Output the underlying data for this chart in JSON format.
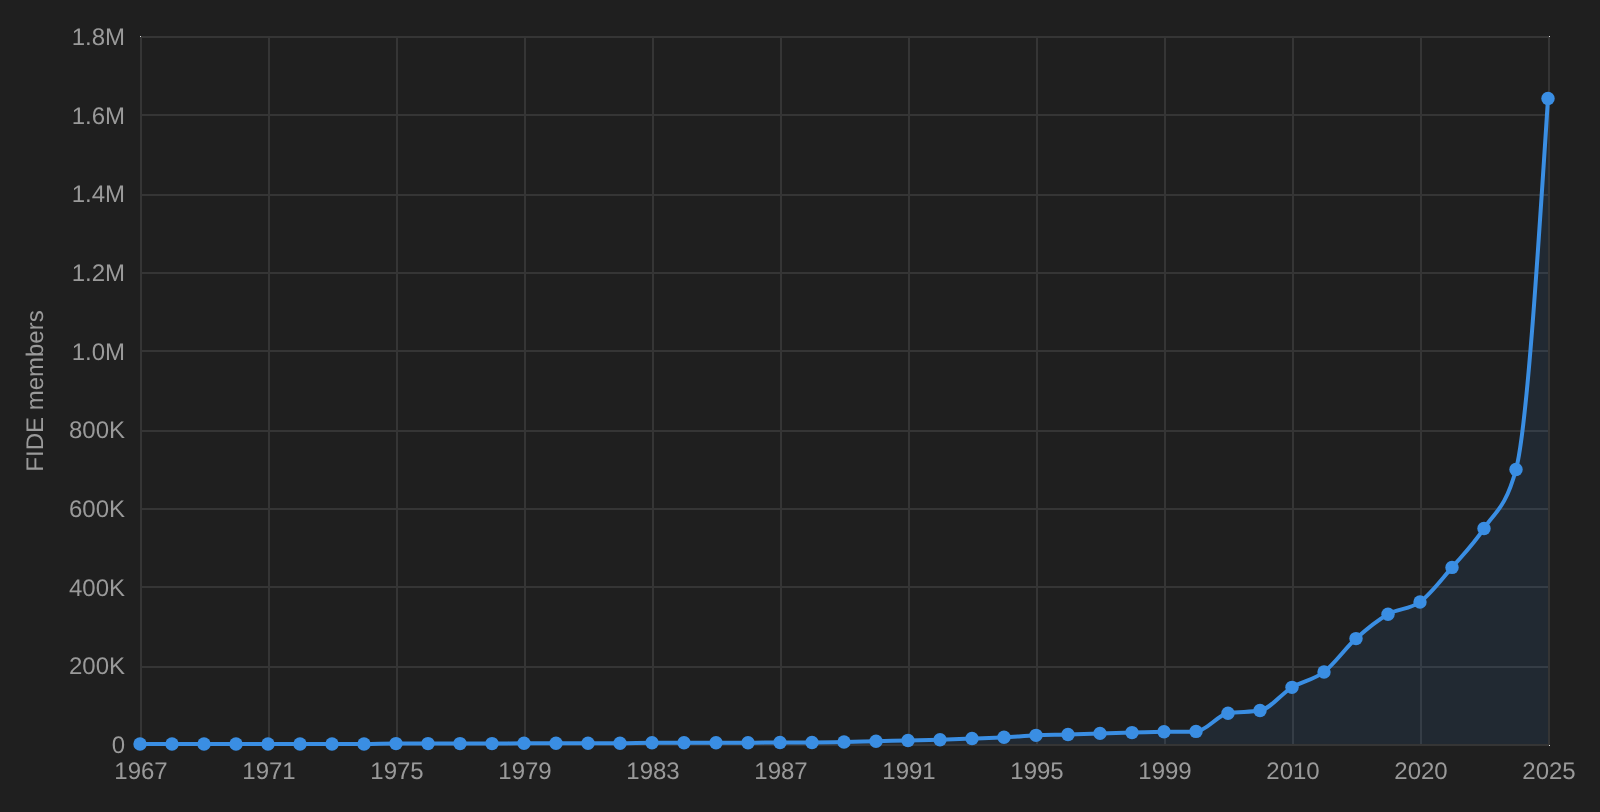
{
  "chart_data": {
    "type": "area",
    "ylabel": "FIDE members",
    "categories": [
      "1967",
      null,
      null,
      null,
      "1971",
      null,
      null,
      null,
      "1975",
      null,
      null,
      null,
      "1979",
      null,
      null,
      null,
      "1983",
      null,
      null,
      null,
      "1987",
      null,
      null,
      null,
      "1991",
      null,
      null,
      null,
      "1995",
      null,
      null,
      null,
      "1999",
      null,
      null,
      null,
      "2010",
      null,
      null,
      null,
      "2020",
      null,
      null,
      null,
      "2025"
    ],
    "series": [
      {
        "color": "#3a8ee3",
        "values": [
          0,
          0,
          0,
          0,
          0,
          0,
          0,
          0,
          1000,
          1000,
          1000,
          1000,
          2000,
          2000,
          2000,
          2000,
          3000,
          3000,
          3000,
          3000,
          4000,
          4000,
          5000,
          7000,
          9000,
          11000,
          14000,
          17000,
          22000,
          24000,
          27000,
          29000,
          31000,
          32000,
          78000,
          85000,
          144000,
          183000,
          268000,
          330000,
          361000,
          449000,
          548000,
          698000,
          1641000
        ]
      }
    ],
    "ylim": [
      0,
      1800000
    ],
    "yticks": [
      0,
      {
        "value": 200000,
        "label": "200K"
      },
      {
        "value": 400000,
        "label": "400K"
      },
      {
        "value": 600000,
        "label": "600K"
      },
      {
        "value": 800000,
        "label": "800K"
      },
      {
        "value": 1000000,
        "label": "1.0M"
      },
      {
        "value": 1200000,
        "label": "1.2M"
      },
      {
        "value": 1400000,
        "label": "1.4M"
      },
      {
        "value": 1600000,
        "label": "1.6M"
      },
      {
        "value": 1800000,
        "label": "1.8M"
      }
    ],
    "grid": true,
    "marker": "circle",
    "line_style": "solid"
  }
}
